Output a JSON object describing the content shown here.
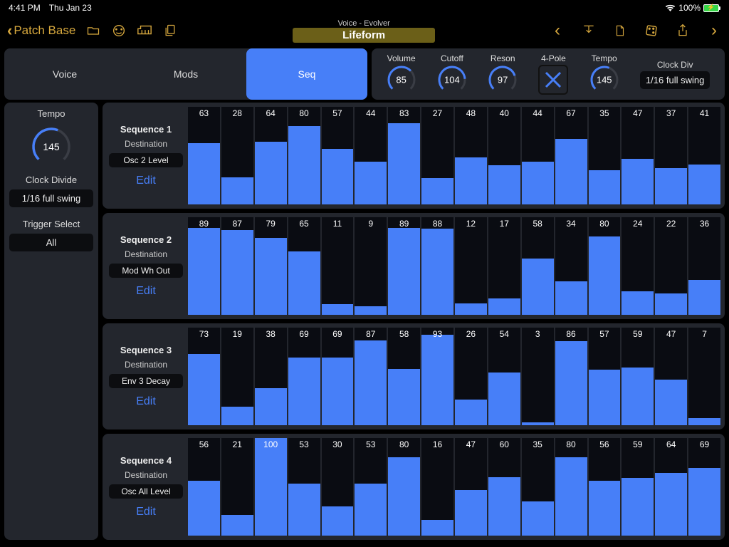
{
  "status": {
    "time": "4:41 PM",
    "date": "Thu Jan 23",
    "battery": "100%"
  },
  "nav": {
    "back": "Patch Base",
    "voice_tag": "Voice - Evolver",
    "patch_name": "Lifeform"
  },
  "tabs": {
    "voice": "Voice",
    "mods": "Mods",
    "seq": "Seq"
  },
  "knobs": {
    "volume": {
      "label": "Volume",
      "value": 85,
      "max": 127
    },
    "cutoff": {
      "label": "Cutoff",
      "value": 104,
      "max": 127
    },
    "reson": {
      "label": "Reson",
      "value": 97,
      "max": 127
    },
    "pole": {
      "label": "4-Pole"
    },
    "tempo": {
      "label": "Tempo",
      "value": 145,
      "max": 250
    },
    "clockdiv": {
      "label": "Clock Div",
      "value": "1/16 full swing"
    }
  },
  "side": {
    "tempo_label": "Tempo",
    "tempo_value": 145,
    "tempo_max": 250,
    "clock_divide_label": "Clock Divide",
    "clock_divide_value": "1/16 full swing",
    "trigger_label": "Trigger Select",
    "trigger_value": "All"
  },
  "colors": {
    "accent": "#477ff8",
    "gold": "#d8a93e",
    "panel": "#23262d",
    "dark": "#0a0c12",
    "patch_bg": "#6b5f18"
  },
  "edit_label": "Edit",
  "dest_label": "Destination",
  "sequences": [
    {
      "title": "Sequence 1",
      "destination": "Osc 2 Level",
      "steps": [
        63,
        28,
        64,
        80,
        57,
        44,
        83,
        27,
        48,
        40,
        44,
        67,
        35,
        47,
        37,
        41
      ]
    },
    {
      "title": "Sequence 2",
      "destination": "Mod Wh Out",
      "steps": [
        89,
        87,
        79,
        65,
        11,
        9,
        89,
        88,
        12,
        17,
        58,
        34,
        80,
        24,
        22,
        36
      ]
    },
    {
      "title": "Sequence 3",
      "destination": "Env 3 Decay",
      "steps": [
        73,
        19,
        38,
        69,
        69,
        87,
        58,
        93,
        26,
        54,
        3,
        86,
        57,
        59,
        47,
        7
      ]
    },
    {
      "title": "Sequence 4",
      "destination": "Osc All Level",
      "steps": [
        56,
        21,
        100,
        53,
        30,
        53,
        80,
        16,
        47,
        60,
        35,
        80,
        56,
        59,
        64,
        69
      ]
    }
  ]
}
